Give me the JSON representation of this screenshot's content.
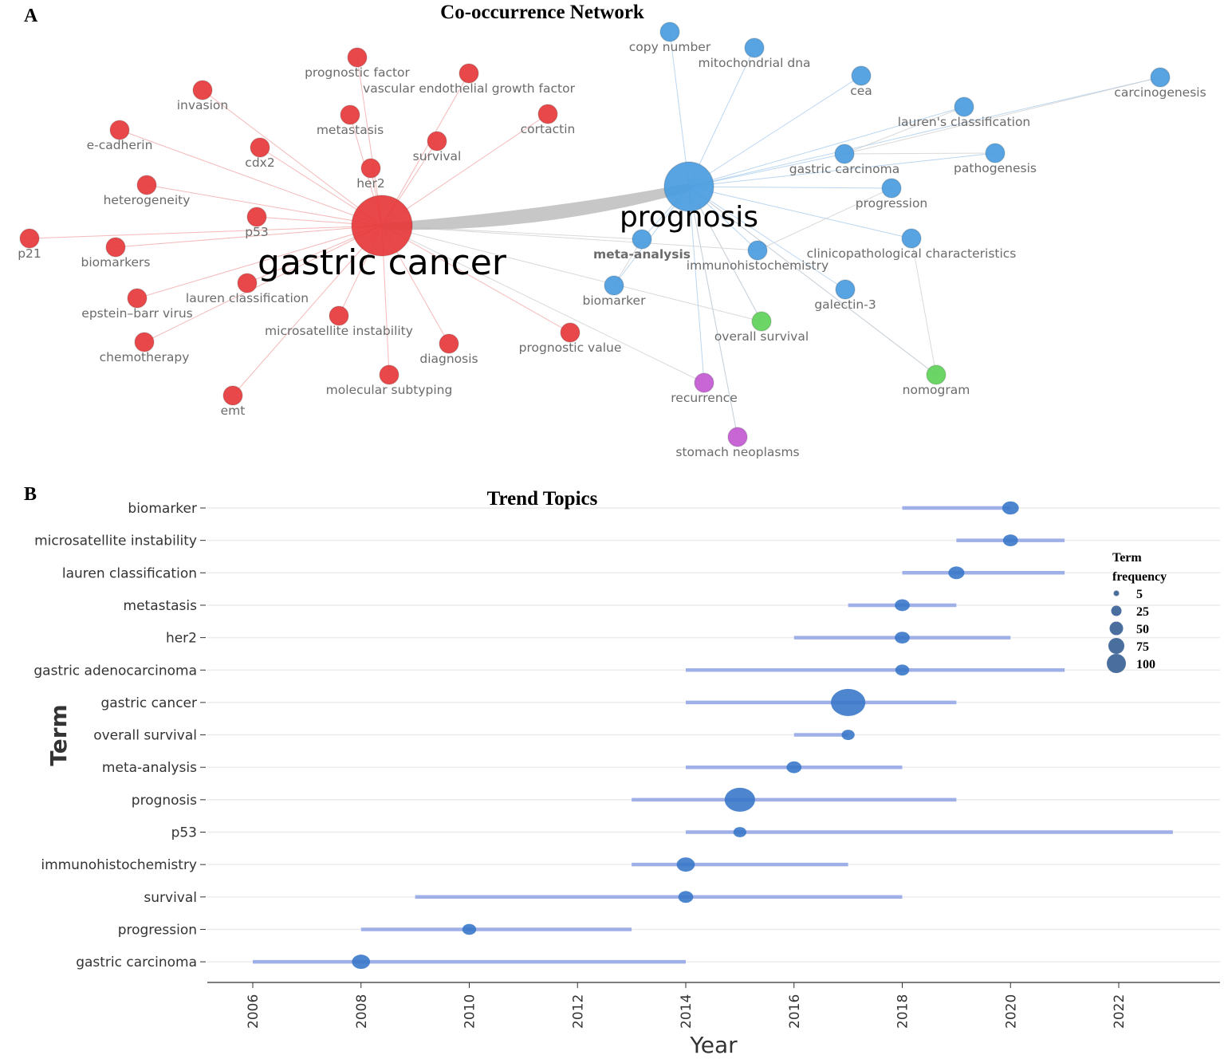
{
  "panels": {
    "a": "A",
    "b": "B"
  },
  "colors": {
    "red": "#e8393b",
    "blue": "#4a9de0",
    "green": "#5fd35a",
    "purple": "#c45ad3",
    "trend_line": "#9fb0e8",
    "trend_dot": "#3a78c9"
  },
  "network": {
    "title": "Co-occurrence Network",
    "nodes": [
      {
        "label": "gastric cancer",
        "cluster": "red"
      },
      {
        "label": "prognosis",
        "cluster": "blue"
      },
      {
        "label": "prognostic factor",
        "cluster": "red"
      },
      {
        "label": "vascular endothelial growth factor",
        "cluster": "red"
      },
      {
        "label": "invasion",
        "cluster": "red"
      },
      {
        "label": "metastasis",
        "cluster": "red"
      },
      {
        "label": "cortactin",
        "cluster": "red"
      },
      {
        "label": "e-cadherin",
        "cluster": "red"
      },
      {
        "label": "survival",
        "cluster": "red"
      },
      {
        "label": "cdx2",
        "cluster": "red"
      },
      {
        "label": "her2",
        "cluster": "red"
      },
      {
        "label": "heterogeneity",
        "cluster": "red"
      },
      {
        "label": "p53",
        "cluster": "red"
      },
      {
        "label": "p21",
        "cluster": "red"
      },
      {
        "label": "biomarkers",
        "cluster": "red"
      },
      {
        "label": "lauren classification",
        "cluster": "red"
      },
      {
        "label": "epstein–barr virus",
        "cluster": "red"
      },
      {
        "label": "microsatellite instability",
        "cluster": "red"
      },
      {
        "label": "chemotherapy",
        "cluster": "red"
      },
      {
        "label": "diagnosis",
        "cluster": "red"
      },
      {
        "label": "prognostic value",
        "cluster": "red"
      },
      {
        "label": "molecular subtyping",
        "cluster": "red"
      },
      {
        "label": "emt",
        "cluster": "red"
      },
      {
        "label": "copy number",
        "cluster": "blue"
      },
      {
        "label": "mitochondrial dna",
        "cluster": "blue"
      },
      {
        "label": "cea",
        "cluster": "blue"
      },
      {
        "label": "carcinogenesis",
        "cluster": "blue"
      },
      {
        "label": "lauren's classification",
        "cluster": "blue"
      },
      {
        "label": "gastric carcinoma",
        "cluster": "blue"
      },
      {
        "label": "pathogenesis",
        "cluster": "blue"
      },
      {
        "label": "progression",
        "cluster": "blue"
      },
      {
        "label": "meta-analysis",
        "cluster": "blue"
      },
      {
        "label": "immunohistochemistry",
        "cluster": "blue"
      },
      {
        "label": "clinicopathological characteristics",
        "cluster": "blue"
      },
      {
        "label": "biomarker",
        "cluster": "blue"
      },
      {
        "label": "galectin-3",
        "cluster": "blue"
      },
      {
        "label": "overall survival",
        "cluster": "green"
      },
      {
        "label": "nomogram",
        "cluster": "green"
      },
      {
        "label": "recurrence",
        "cluster": "purple"
      },
      {
        "label": "stomach neoplasms",
        "cluster": "purple"
      }
    ]
  },
  "chart_data": {
    "type": "scatter",
    "title": "Trend Topics",
    "xlabel": "Year",
    "ylabel": "Term",
    "xlim": [
      2005.2,
      2023.9
    ],
    "xticks": [
      2006,
      2008,
      2010,
      2012,
      2014,
      2016,
      2018,
      2020,
      2022
    ],
    "legend": {
      "title_line1": "Term",
      "title_line2": "frequency",
      "sizes": [
        5,
        25,
        50,
        75,
        100
      ],
      "placement": "right"
    },
    "terms": [
      {
        "term": "biomarker",
        "q1": 2018,
        "median": 2020,
        "q3": 2020,
        "freq": 20
      },
      {
        "term": "microsatellite instability",
        "q1": 2019,
        "median": 2020,
        "q3": 2021,
        "freq": 15
      },
      {
        "term": "lauren classification",
        "q1": 2018,
        "median": 2019,
        "q3": 2021,
        "freq": 18
      },
      {
        "term": "metastasis",
        "q1": 2017,
        "median": 2018,
        "q3": 2019,
        "freq": 15
      },
      {
        "term": "her2",
        "q1": 2016,
        "median": 2018,
        "q3": 2020,
        "freq": 15
      },
      {
        "term": "gastric adenocarcinoma",
        "q1": 2014,
        "median": 2018,
        "q3": 2021,
        "freq": 12
      },
      {
        "term": "gastric cancer",
        "q1": 2014,
        "median": 2017,
        "q3": 2019,
        "freq": 120
      },
      {
        "term": "overall survival",
        "q1": 2016,
        "median": 2017,
        "q3": 2017,
        "freq": 10
      },
      {
        "term": "meta-analysis",
        "q1": 2014,
        "median": 2016,
        "q3": 2018,
        "freq": 15
      },
      {
        "term": "prognosis",
        "q1": 2013,
        "median": 2015,
        "q3": 2019,
        "freq": 90
      },
      {
        "term": "p53",
        "q1": 2014,
        "median": 2015,
        "q3": 2023,
        "freq": 10
      },
      {
        "term": "immunohistochemistry",
        "q1": 2013,
        "median": 2014,
        "q3": 2017,
        "freq": 25
      },
      {
        "term": "survival",
        "q1": 2009,
        "median": 2014,
        "q3": 2018,
        "freq": 15
      },
      {
        "term": "progression",
        "q1": 2008,
        "median": 2010,
        "q3": 2013,
        "freq": 12
      },
      {
        "term": "gastric carcinoma",
        "q1": 2006,
        "median": 2008,
        "q3": 2014,
        "freq": 25
      }
    ]
  }
}
